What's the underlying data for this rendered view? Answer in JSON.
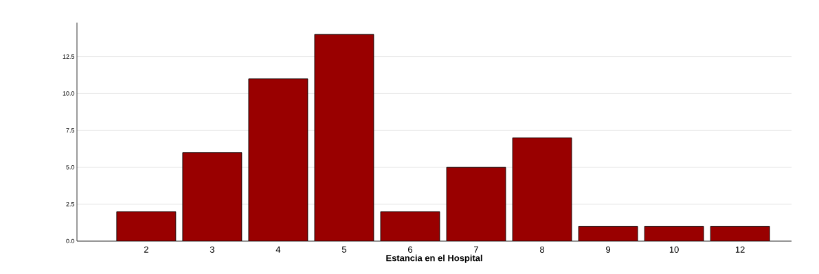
{
  "chart_data": {
    "type": "bar",
    "xlabel": "Estancia en el Hospital",
    "categories": [
      "2",
      "3",
      "4",
      "5",
      "6",
      "7",
      "8",
      "9",
      "10",
      "12"
    ],
    "values": [
      2,
      6,
      11,
      14,
      2,
      5,
      7,
      1,
      1,
      1
    ],
    "color": "#990000",
    "ylim": [
      0,
      14.8
    ],
    "yticks": [
      {
        "value": 0,
        "label": "0.0"
      },
      {
        "value": 2.5,
        "label": "2.5"
      },
      {
        "value": 5,
        "label": "5.0"
      },
      {
        "value": 7.5,
        "label": "7.5"
      },
      {
        "value": 10,
        "label": "10.0"
      },
      {
        "value": 12.5,
        "label": "12.5"
      }
    ],
    "grid": "y"
  }
}
